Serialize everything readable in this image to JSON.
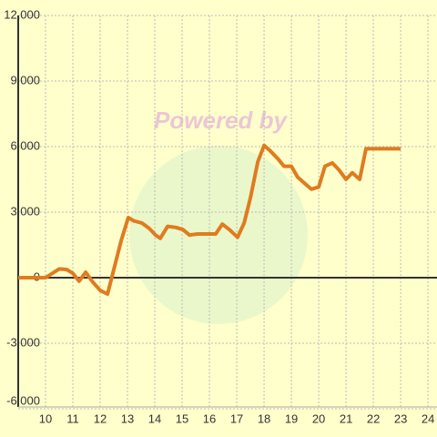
{
  "chart_data": {
    "type": "line",
    "watermark": "Powered by",
    "x": [
      9,
      10,
      10.5,
      10.77,
      11,
      11.23,
      11.47,
      11.73,
      12,
      12.27,
      12.77,
      13.03,
      13.23,
      13.53,
      13.8,
      14.03,
      14.2,
      14.47,
      14.77,
      15.03,
      15.27,
      15.57,
      15.8,
      16.23,
      16.47,
      16.73,
      17.03,
      17.27,
      17.5,
      17.77,
      18,
      18.23,
      18.5,
      18.73,
      19,
      19.23,
      19.5,
      19.73,
      20,
      20.23,
      20.5,
      20.73,
      21,
      21.23,
      21.5,
      21.73,
      23
    ],
    "series": [
      {
        "color": "#e07b20",
        "values": [
          0,
          0,
          400,
          375,
          200,
          -160,
          250,
          -200,
          -580,
          -750,
          1700,
          2750,
          2600,
          2500,
          2250,
          1950,
          1800,
          2350,
          2300,
          2200,
          1950,
          2000,
          2000,
          2000,
          2450,
          2200,
          1850,
          2500,
          3650,
          5300,
          6050,
          5800,
          5450,
          5100,
          5100,
          4600,
          4300,
          4050,
          4150,
          5100,
          5250,
          4950,
          4500,
          4800,
          4500,
          5900,
          5900
        ]
      }
    ],
    "xlim": [
      9,
      24.33
    ],
    "xticks": [
      10,
      11,
      12,
      13,
      14,
      15,
      16,
      17,
      18,
      19,
      20,
      21,
      22,
      23,
      24
    ],
    "ylim": [
      -6000,
      12000
    ],
    "yticks": [
      {
        "value": -6000,
        "label": "-6,000"
      },
      {
        "value": -3000,
        "label": "-3,000"
      },
      0,
      {
        "value": 3000,
        "label": "3,000"
      },
      {
        "value": 6000,
        "label": "6,000"
      },
      {
        "value": 9000,
        "label": "9,000"
      },
      {
        "value": 12000,
        "label": "12,000"
      }
    ],
    "grid": true
  }
}
